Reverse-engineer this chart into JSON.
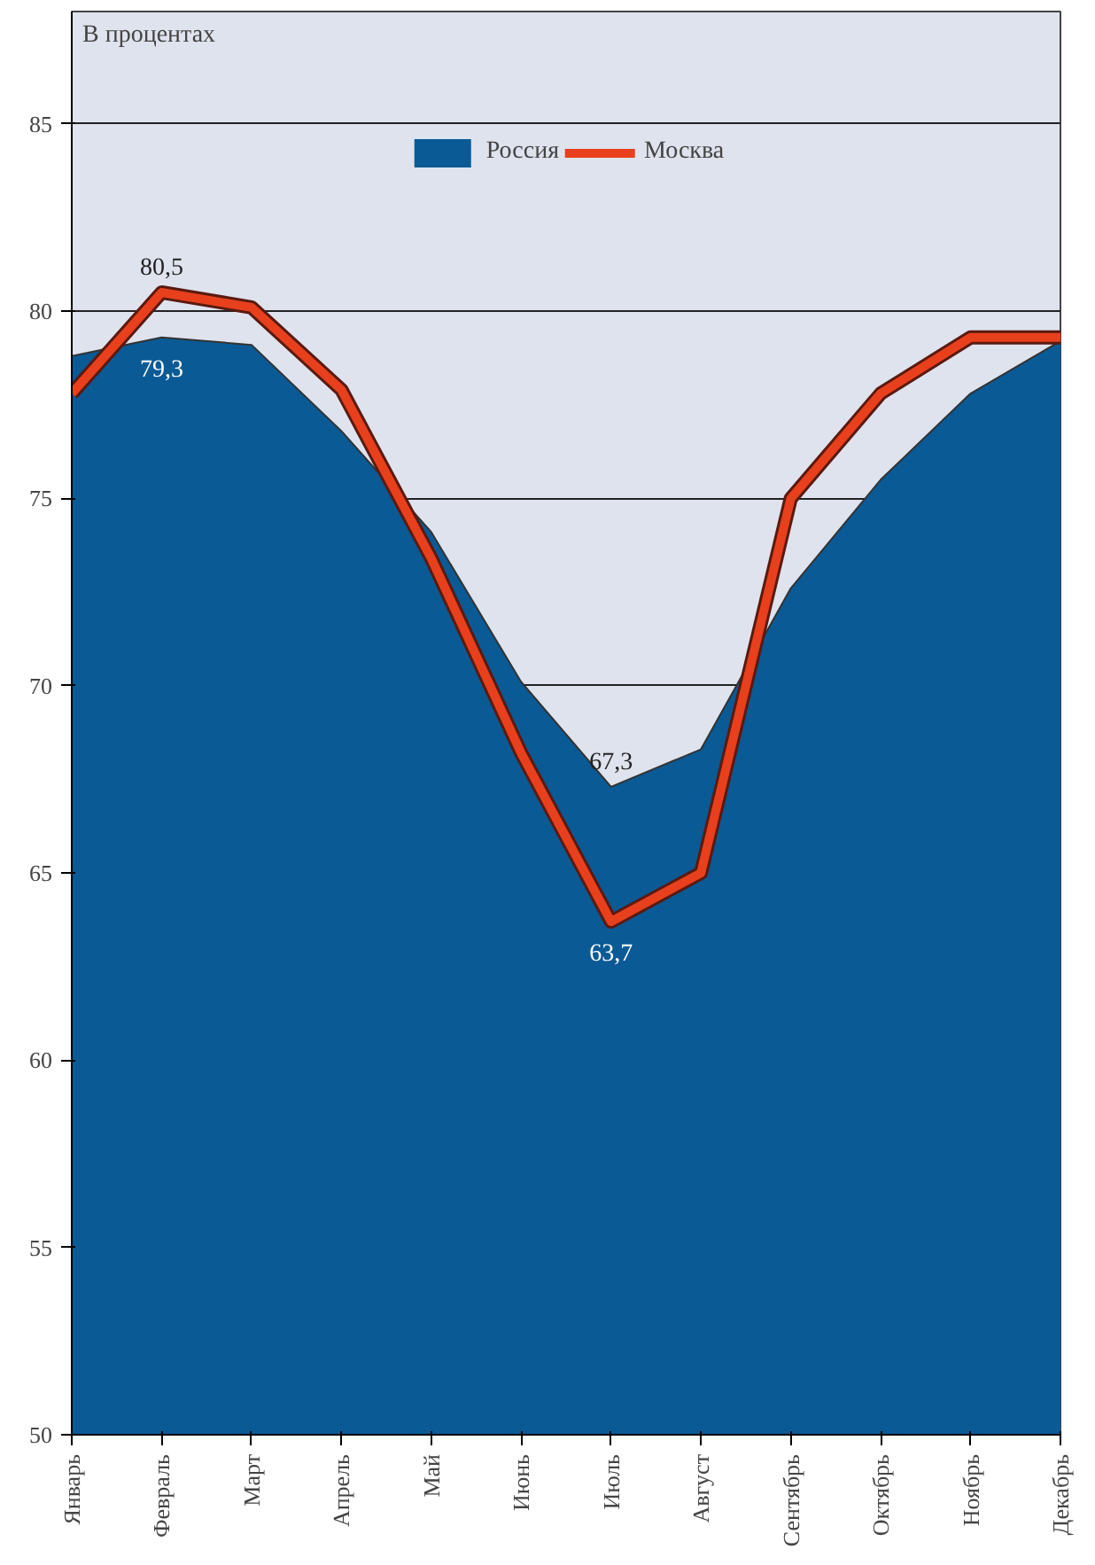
{
  "chart_data": {
    "type": "area",
    "title": "В процентах",
    "categories": [
      "Январь",
      "Февраль",
      "Март",
      "Апрель",
      "Май",
      "Июнь",
      "Июль",
      "Август",
      "Сентябрь",
      "Октябрь",
      "Ноябрь",
      "Декабрь"
    ],
    "series": [
      {
        "name": "Россия",
        "color": "#0a5a96",
        "values": [
          78.8,
          79.3,
          79.1,
          76.8,
          74.1,
          70.1,
          67.3,
          68.3,
          72.6,
          75.5,
          77.8,
          79.2
        ],
        "value_labels": [
          null,
          "79,3",
          null,
          null,
          null,
          null,
          "67,3",
          null,
          null,
          null,
          null,
          null
        ]
      },
      {
        "name": "Москва",
        "type": "line",
        "color": "#e8401c",
        "values": [
          77.8,
          80.5,
          80.1,
          77.9,
          73.4,
          68.2,
          63.7,
          65.0,
          75.0,
          77.8,
          79.3,
          79.3
        ],
        "value_labels": [
          null,
          "80,5",
          null,
          null,
          null,
          null,
          "63,7",
          null,
          null,
          null,
          null,
          null
        ]
      }
    ],
    "ylim": [
      50,
      88
    ],
    "yticks": [
      50,
      55,
      60,
      65,
      70,
      75,
      80,
      85
    ],
    "grid": "y",
    "legend": "top",
    "marker": "none",
    "line_style": "solid"
  }
}
